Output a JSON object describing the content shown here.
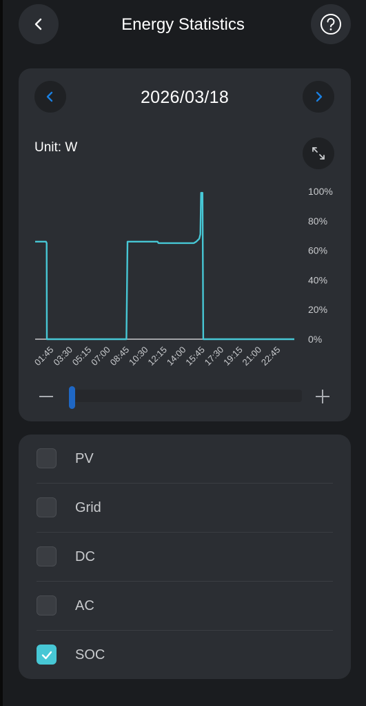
{
  "header": {
    "title": "Energy Statistics",
    "back_icon": "chevron-left-icon",
    "help_icon": "question-circle-icon"
  },
  "date_nav": {
    "date": "2026/03/18",
    "prev_icon": "chevron-left-icon",
    "next_icon": "chevron-right-icon",
    "accent": "#1a7fe0"
  },
  "chart": {
    "unit_label": "Unit: W",
    "expand_icon": "expand-arrows-icon",
    "zoom_minus_icon": "minus-icon",
    "zoom_plus_icon": "plus-icon",
    "zoom_slider_value": 0.0
  },
  "chart_data": {
    "type": "line",
    "xlabel": "",
    "ylabel": "",
    "x_ticks": [
      "01:45",
      "03:30",
      "05:15",
      "07:00",
      "08:45",
      "10:30",
      "12:15",
      "14:00",
      "15:45",
      "17:30",
      "19:15",
      "21:00",
      "22:45"
    ],
    "y_ticks": [
      "100%",
      "80%",
      "60%",
      "40%",
      "20%",
      "0%"
    ],
    "ylim": [
      0,
      100
    ],
    "xlim": [
      "00:00",
      "24:00"
    ],
    "grid": false,
    "series": [
      {
        "color": "#47c7d5",
        "points": [
          [
            "00:00",
            66
          ],
          [
            "01:00",
            66
          ],
          [
            "01:04",
            65
          ],
          [
            "01:05",
            0
          ],
          [
            "08:27",
            0
          ],
          [
            "08:33",
            66
          ],
          [
            "11:20",
            66
          ],
          [
            "11:25",
            65
          ],
          [
            "14:42",
            65
          ],
          [
            "14:55",
            66
          ],
          [
            "15:12",
            68
          ],
          [
            "15:18",
            71
          ],
          [
            "15:22",
            99
          ],
          [
            "15:30",
            99
          ],
          [
            "15:34",
            0
          ],
          [
            "24:00",
            0
          ]
        ]
      }
    ]
  },
  "series_options": [
    {
      "label": "PV",
      "checked": false
    },
    {
      "label": "Grid",
      "checked": false
    },
    {
      "label": "DC",
      "checked": false
    },
    {
      "label": "AC",
      "checked": false
    },
    {
      "label": "SOC",
      "checked": true
    }
  ],
  "colors": {
    "background": "#1a1c1f",
    "card": "#2b2e33",
    "soc_line": "#47c7d5",
    "slider": "#1f67c4"
  }
}
